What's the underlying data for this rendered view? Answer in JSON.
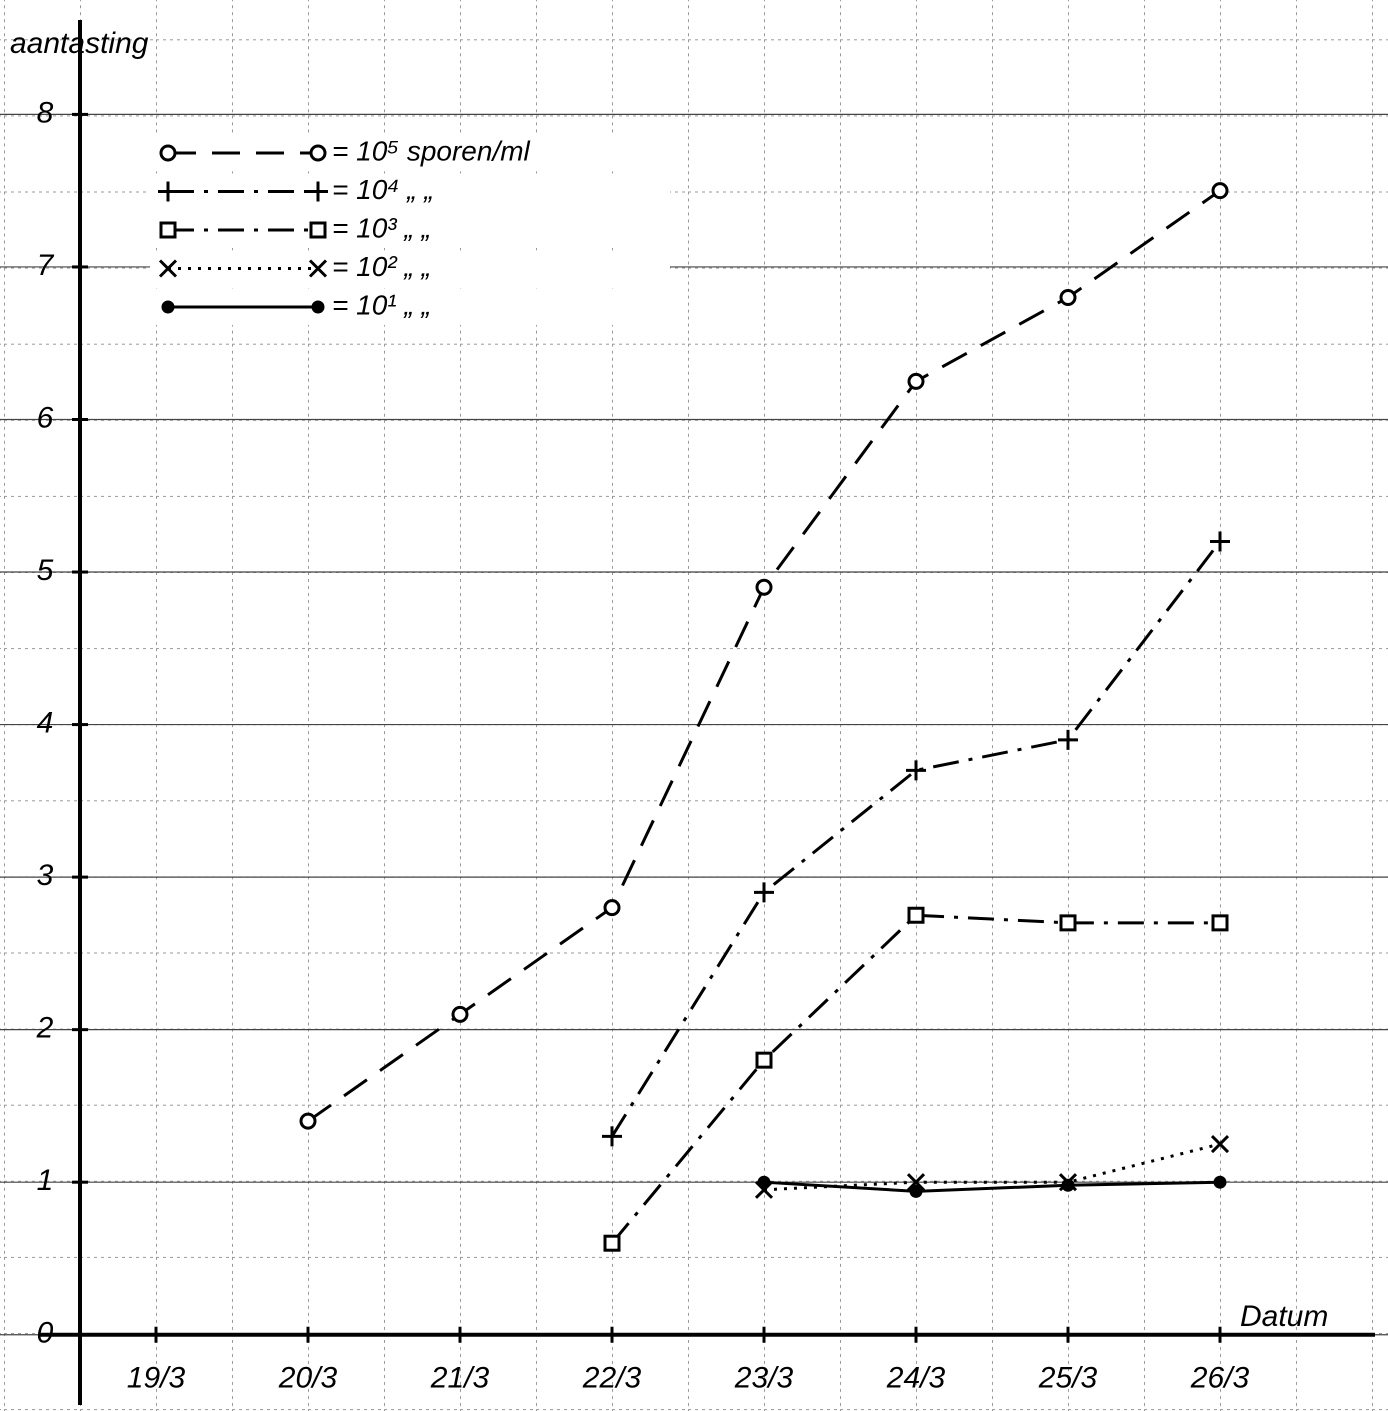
{
  "chart_data": {
    "type": "line",
    "y_label": "aantasting",
    "x_label": "Datum",
    "categories": [
      "19/3",
      "20/3",
      "21/3",
      "22/3",
      "23/3",
      "24/3",
      "25/3",
      "26/3"
    ],
    "series": [
      {
        "name": "= 10⁵ sporen/ml",
        "color": "#000000",
        "style": "dashed",
        "marker": "circle",
        "values": [
          null,
          1.4,
          2.1,
          2.8,
          4.9,
          6.25,
          6.8,
          7.5
        ]
      },
      {
        "name": "= 10⁴   „   „",
        "color": "#000000",
        "style": "dashdot",
        "marker": "plus",
        "values": [
          null,
          null,
          null,
          1.3,
          2.9,
          3.7,
          3.9,
          5.2
        ]
      },
      {
        "name": "= 10³   „   „",
        "color": "#000000",
        "style": "dashdot",
        "marker": "square",
        "values": [
          null,
          null,
          null,
          0.6,
          1.8,
          2.75,
          2.7,
          2.7
        ]
      },
      {
        "name": "= 10²   „   „",
        "color": "#000000",
        "style": "dotted",
        "marker": "cross",
        "values": [
          null,
          null,
          null,
          null,
          0.95,
          1.0,
          1.0,
          1.25
        ]
      },
      {
        "name": "= 10¹   „   „",
        "color": "#000000",
        "style": "solid",
        "marker": "dot",
        "values": [
          null,
          null,
          null,
          null,
          1.0,
          0.94,
          0.98,
          1.0
        ]
      }
    ],
    "ylim": [
      -0.5,
      8.75
    ],
    "yticks": [
      0,
      1,
      2,
      3,
      4,
      5,
      6,
      7,
      8
    ],
    "grid": true
  }
}
